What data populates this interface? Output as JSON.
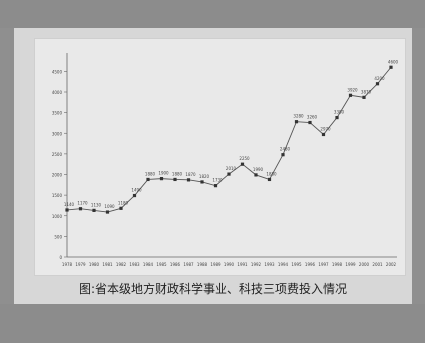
{
  "caption": "图:省本级地方财政科学事业、科技三项费投入情况",
  "chart_data": {
    "type": "line",
    "title": "",
    "xlabel": "",
    "ylabel": "",
    "x": [
      1978,
      1979,
      1980,
      1981,
      1982,
      1983,
      1984,
      1985,
      1986,
      1987,
      1988,
      1989,
      1990,
      1991,
      1992,
      1993,
      1994,
      1995,
      1996,
      1997,
      1998,
      1999,
      2000,
      2001,
      2002
    ],
    "series": [
      {
        "name": "",
        "values": [
          1140,
          1170,
          1130,
          1090,
          1180,
          1490,
          1880,
          1900,
          1880,
          1870,
          1820,
          1730,
          2010,
          2250,
          1990,
          1880,
          2480,
          3280,
          3260,
          2970,
          3380,
          3920,
          3870,
          4200,
          4600
        ]
      }
    ],
    "ylim": [
      0,
      4800
    ],
    "grid": false
  }
}
